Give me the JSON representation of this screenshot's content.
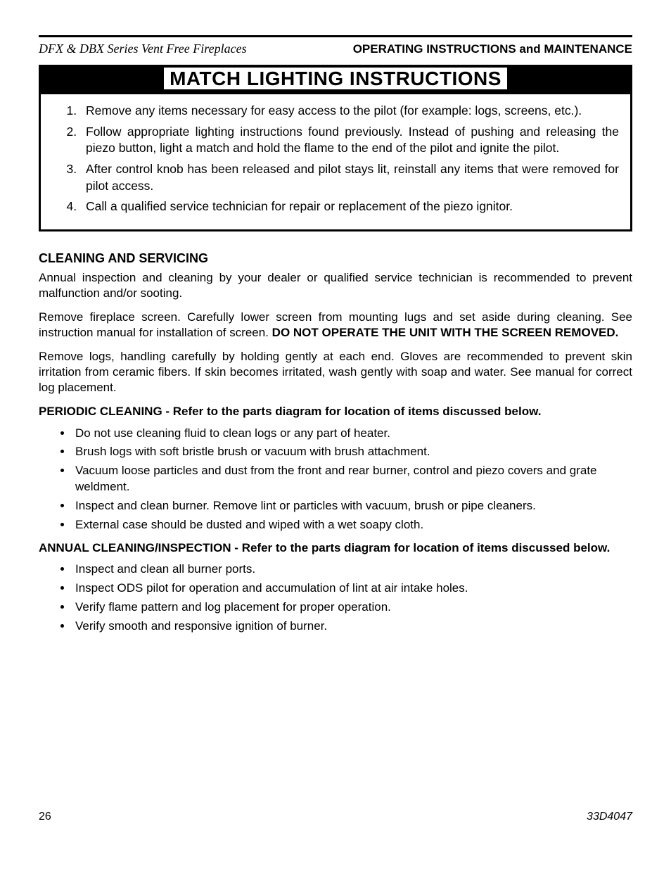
{
  "header": {
    "left": "DFX & DBX Series Vent Free Fireplaces",
    "right": "OPERATING INSTRUCTIONS and MAINTENANCE"
  },
  "banner": "MATCH LIGHTING INSTRUCTIONS",
  "match_instructions": [
    "Remove any items necessary for easy access to the pilot (for example: logs, screens, etc.).",
    "Follow appropriate lighting instructions found previously. Instead of pushing and releasing the piezo button, light a match and hold the flame to the end of the pilot and ignite the pilot.",
    "After control knob has been released and pilot stays lit, reinstall any items that were removed for pilot access.",
    "Call a qualified service technician for repair or replacement of the piezo ignitor."
  ],
  "cleaning": {
    "heading": "CLEANING AND SERVICING",
    "para1": "Annual inspection and cleaning by your dealer or qualified service technician is recommended to prevent malfunction and/or sooting.",
    "para2_pre": "Remove fireplace screen. Carefully lower screen from mounting lugs and set aside during cleaning. See instruction manual for installation of screen. ",
    "para2_bold": "DO NOT OPERATE THE UNIT WITH THE SCREEN REMOVED.",
    "para3": "Remove logs, handling carefully by holding gently at each end. Gloves are recommended to prevent skin irritation from ceramic fibers. If skin becomes irritated, wash gently with soap and water. See manual for correct log placement.",
    "periodic_heading": "PERIODIC CLEANING - Refer to the parts diagram for location of items discussed below.",
    "periodic_items": [
      "Do not use cleaning fluid to clean logs or any part of heater.",
      "Brush logs with soft bristle brush or vacuum with brush attachment.",
      "Vacuum loose particles and dust from the front and rear burner, control and piezo covers and grate weldment.",
      "Inspect and clean burner. Remove lint or particles with vacuum, brush or pipe cleaners.",
      "External case should be dusted and wiped with a wet soapy cloth."
    ],
    "annual_heading": "ANNUAL CLEANING/INSPECTION - Refer to the parts diagram for location of items discussed below.",
    "annual_items": [
      "Inspect and clean all burner ports.",
      "Inspect ODS pilot for operation and accumulation of lint at air intake holes.",
      "Verify flame pattern and log placement for proper operation.",
      "Verify smooth and responsive ignition of burner."
    ]
  },
  "footer": {
    "page": "26",
    "doc": "33D4047"
  }
}
